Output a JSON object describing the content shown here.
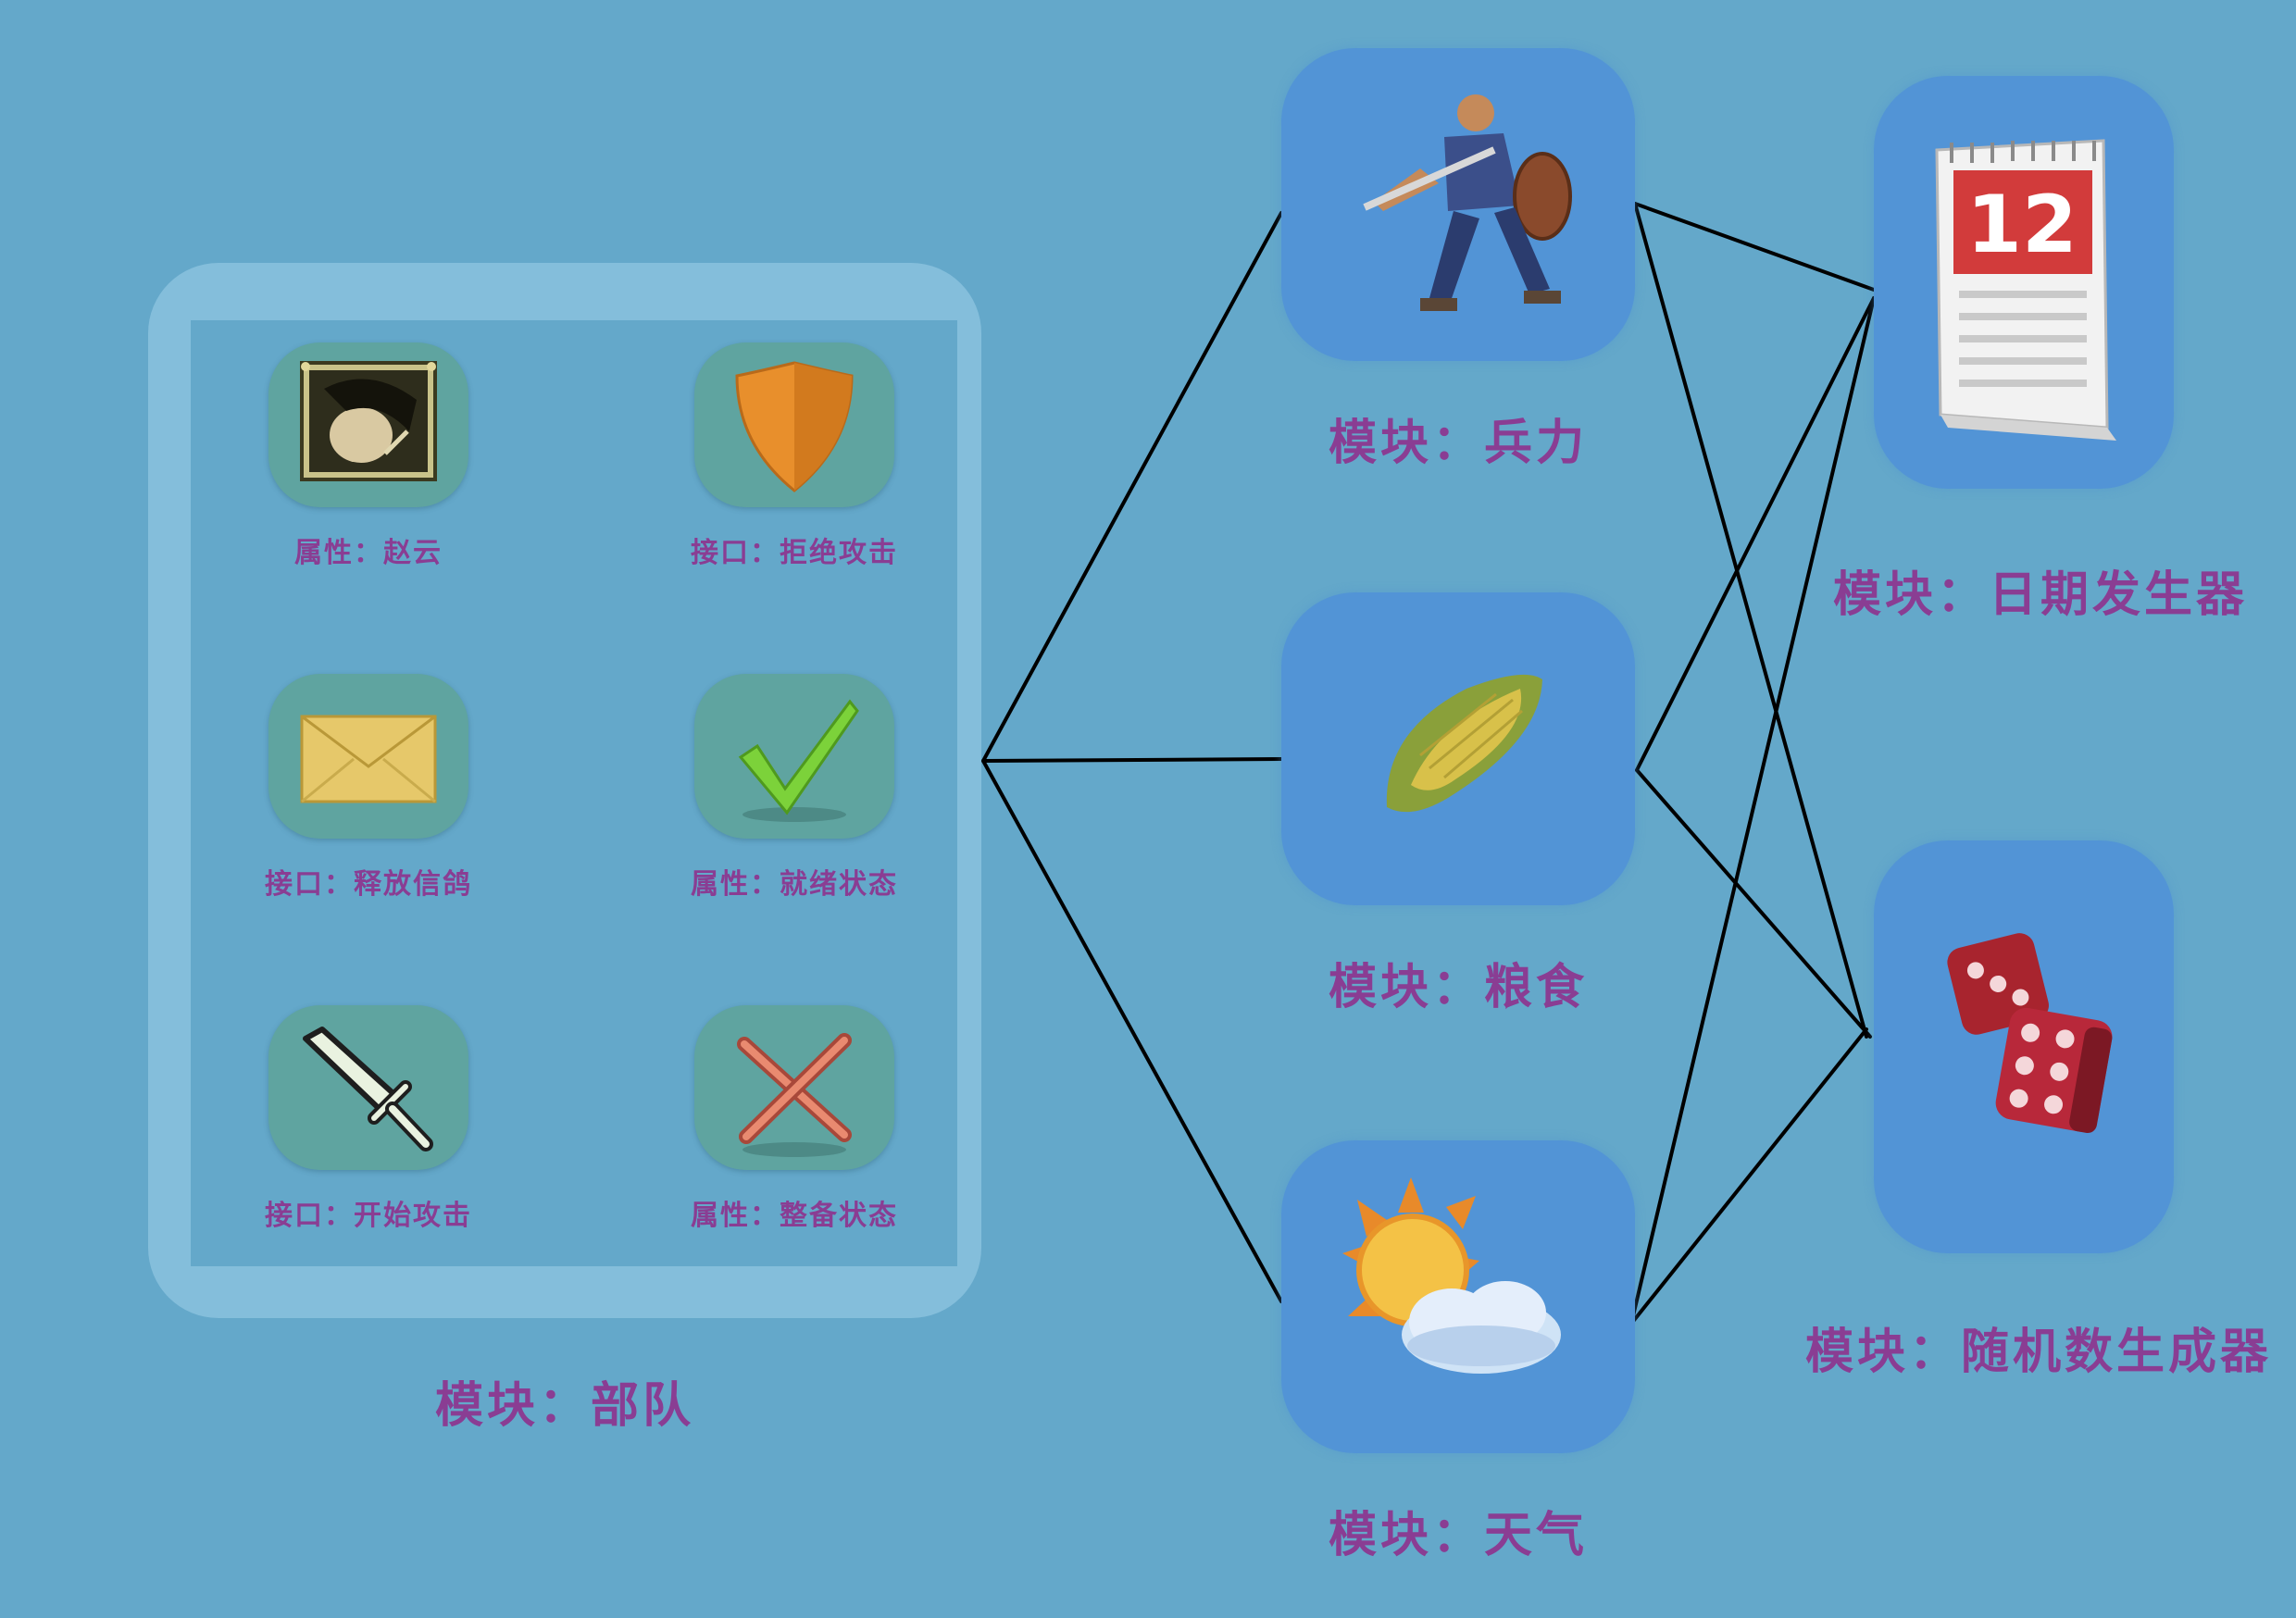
{
  "troop_panel": {
    "items": [
      {
        "label": "属性：赵云",
        "icon": "portrait-icon"
      },
      {
        "label": "接口：拒绝攻击",
        "icon": "shield-icon"
      },
      {
        "label": "接口：释放信鸽",
        "icon": "envelope-icon"
      },
      {
        "label": "属性：就绪状态",
        "icon": "checkmark-icon"
      },
      {
        "label": "接口：开始攻击",
        "icon": "sword-icon"
      },
      {
        "label": "属性：整备状态",
        "icon": "cross-icon"
      }
    ],
    "title": "模块：部队"
  },
  "modules": {
    "troops": {
      "title": "模块：兵力",
      "icon": "warrior-icon"
    },
    "grain": {
      "title": "模块：粮食",
      "icon": "corn-icon"
    },
    "weather": {
      "title": "模块：天气",
      "icon": "sun-cloud-icon"
    },
    "date": {
      "title": "模块：日期发生器",
      "icon": "calendar-icon",
      "calendar_number": "12"
    },
    "random": {
      "title": "模块：随机数生成器",
      "icon": "dice-icon"
    }
  },
  "colors": {
    "background": "#64a8ca",
    "panel": "#84bedb",
    "tile": "#5fa4a0",
    "module_box": "#5294d6",
    "label_text": "#8a3d93",
    "connector": "#000000"
  }
}
